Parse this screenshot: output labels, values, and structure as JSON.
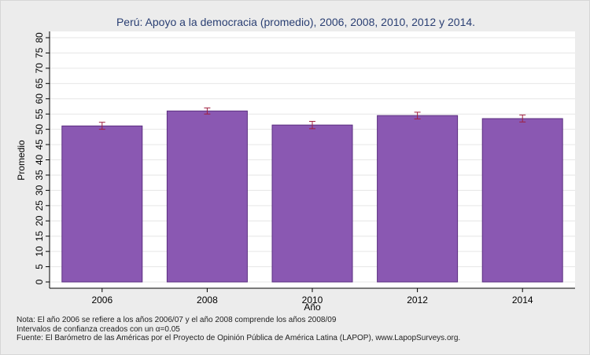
{
  "chart_data": {
    "type": "bar",
    "title": "Perú: Apoyo a la democracia (promedio), 2006, 2008, 2010, 2012 y 2014.",
    "xlabel": "Año",
    "ylabel": "Promedio",
    "categories": [
      "2006",
      "2008",
      "2010",
      "2012",
      "2014"
    ],
    "values": [
      51.1,
      56.0,
      51.4,
      54.5,
      53.5
    ],
    "error_low": [
      50.0,
      55.0,
      50.2,
      53.4,
      52.4
    ],
    "error_high": [
      52.3,
      57.0,
      52.6,
      55.6,
      54.7
    ],
    "ylim": [
      0,
      80
    ],
    "yticks": [
      0,
      5,
      10,
      15,
      20,
      25,
      30,
      35,
      40,
      45,
      50,
      55,
      60,
      65,
      70,
      75,
      80
    ],
    "grid": true,
    "colors": {
      "bar_fill": "#8a58b2",
      "bar_stroke": "#5b2f80",
      "error_bar": "#a02040",
      "plot_bg": "#ffffff",
      "grid": "#e6e6e6",
      "title": "#2a3f73"
    }
  },
  "notes": {
    "line1": "Nota: El año 2006 se refiere a los años 2006/07 y el año 2008 comprende los años 2008/09",
    "line2": "Intervalos de confianza creados con un α=0.05",
    "line3": "Fuente: El Barómetro de las Américas por el Proyecto de Opinión Pública de América Latina (LAPOP), www.LapopSurveys.org."
  }
}
